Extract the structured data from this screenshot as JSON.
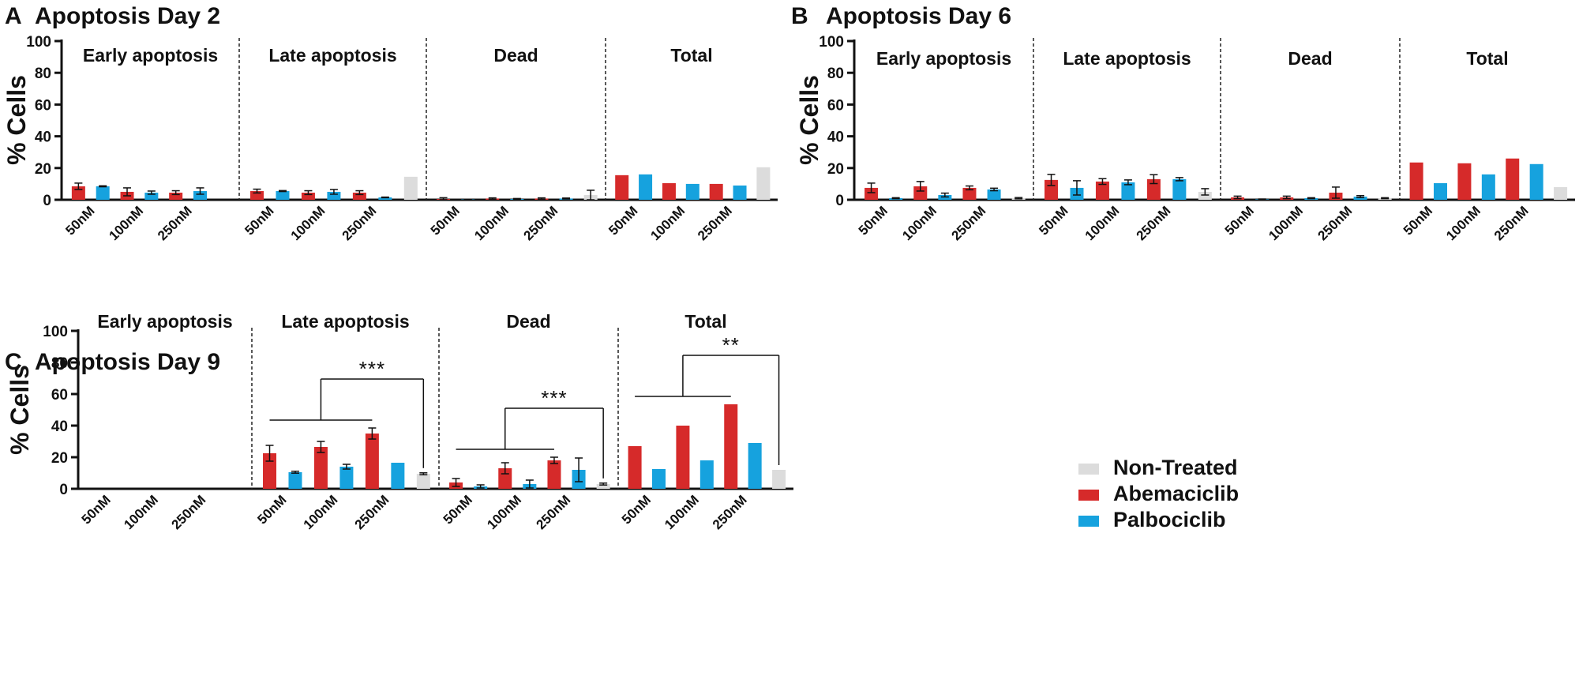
{
  "legend": [
    {
      "name": "Non-Treated",
      "color": "#dcdcdc"
    },
    {
      "name": "Abemaciclib",
      "color": "#d62a2a"
    },
    {
      "name": "Palbociclib",
      "color": "#16a2de"
    }
  ],
  "chart_data": [
    {
      "panel": "A",
      "title": "Apoptosis Day 2",
      "type": "bar",
      "ylabel": "% Cells",
      "ylim": [
        0,
        100
      ],
      "yticks": [
        "0",
        "20",
        "40",
        "60",
        "80",
        "100"
      ],
      "doses": [
        "50nM",
        "100nM",
        "250nM"
      ],
      "groups": [
        {
          "label": "Early apoptosis",
          "abemaciclib": [
            8.5,
            5.0,
            4.5
          ],
          "abemaciclib_err": [
            2,
            2.5,
            1.2
          ],
          "palbociclib": [
            8.5,
            4.5,
            5.5
          ],
          "palbociclib_err": [
            0.3,
            1.0,
            2.0
          ],
          "non_treated": 0,
          "non_treated_err": 0
        },
        {
          "label": "Late apoptosis",
          "abemaciclib": [
            5.5,
            4.5,
            4.5
          ],
          "abemaciclib_err": [
            1.2,
            1.2,
            1.2
          ],
          "palbociclib": [
            5.5,
            5.0,
            1.5
          ],
          "palbociclib_err": [
            0.3,
            1.5,
            0.2
          ],
          "non_treated": 14.5,
          "non_treated_err": 0
        },
        {
          "label": "Dead",
          "abemaciclib": [
            0.5,
            0.8,
            0.8
          ],
          "abemaciclib_err": [
            0.8,
            0.4,
            0.4
          ],
          "palbociclib": [
            0.2,
            0.5,
            0.8
          ],
          "palbociclib_err": [
            0.1,
            0.3,
            0.3
          ],
          "non_treated": 3.0,
          "non_treated_err": 3.0
        },
        {
          "label": "Total",
          "abemaciclib": [
            15.5,
            10.5,
            10.0
          ],
          "abemaciclib_err": [
            0,
            0,
            0
          ],
          "palbociclib": [
            16.0,
            10.0,
            9.0
          ],
          "palbociclib_err": [
            0,
            0,
            0
          ],
          "non_treated": 20.5,
          "non_treated_err": 0
        }
      ],
      "significance": []
    },
    {
      "panel": "B",
      "title": "Apoptosis Day 6",
      "type": "bar",
      "ylabel": "% Cells",
      "ylim": [
        0,
        100
      ],
      "yticks": [
        "0",
        "20",
        "40",
        "60",
        "80",
        "100"
      ],
      "doses": [
        "50nM",
        "100nM",
        "250nM"
      ],
      "groups": [
        {
          "label": "Early apoptosis",
          "abemaciclib": [
            7.5,
            8.5,
            7.5
          ],
          "abemaciclib_err": [
            3,
            3,
            1.2
          ],
          "palbociclib": [
            1.0,
            3.0,
            6.5
          ],
          "palbociclib_err": [
            0.3,
            1.2,
            0.8
          ],
          "non_treated": 1.0,
          "non_treated_err": 0.4
        },
        {
          "label": "Late apoptosis",
          "abemaciclib": [
            12.5,
            11.5,
            13.0
          ],
          "abemaciclib_err": [
            3.5,
            1.8,
            2.8
          ],
          "palbociclib": [
            7.5,
            11.0,
            13.0
          ],
          "palbociclib_err": [
            4.5,
            1.5,
            1.0
          ],
          "non_treated": 5.0,
          "non_treated_err": 2.0
        },
        {
          "label": "Dead",
          "abemaciclib": [
            1.5,
            1.5,
            4.5
          ],
          "abemaciclib_err": [
            0.8,
            0.8,
            3.5
          ],
          "palbociclib": [
            0.3,
            1.0,
            2.0
          ],
          "palbociclib_err": [
            0.2,
            0.3,
            0.6
          ],
          "non_treated": 1.0,
          "non_treated_err": 0.3
        },
        {
          "label": "Total",
          "abemaciclib": [
            23.5,
            23.0,
            26.0
          ],
          "abemaciclib_err": [
            0,
            0,
            0
          ],
          "palbociclib": [
            10.5,
            16.0,
            22.5
          ],
          "palbociclib_err": [
            0,
            0,
            0
          ],
          "non_treated": 8.0,
          "non_treated_err": 0
        }
      ],
      "significance": []
    },
    {
      "panel": "C",
      "title": "Apoptosis Day 9",
      "type": "bar",
      "ylabel": "% Cells",
      "ylim": [
        0,
        100
      ],
      "yticks": [
        "0",
        "20",
        "40",
        "60",
        "80",
        "100"
      ],
      "doses": [
        "50nM",
        "100nM",
        "250nM"
      ],
      "groups": [
        {
          "label": "Early apoptosis",
          "abemaciclib": [
            0,
            0,
            0
          ],
          "abemaciclib_err": [
            0,
            0,
            0
          ],
          "palbociclib": [
            0,
            0,
            0
          ],
          "palbociclib_err": [
            0,
            0,
            0
          ],
          "non_treated": 0,
          "non_treated_err": 0
        },
        {
          "label": "Late apoptosis",
          "abemaciclib": [
            22.5,
            26.5,
            35.0
          ],
          "abemaciclib_err": [
            5,
            3.5,
            3.5
          ],
          "palbociclib": [
            10.5,
            14.0,
            16.5
          ],
          "palbociclib_err": [
            0.6,
            1.5,
            0
          ],
          "non_treated": 9.5,
          "non_treated_err": 0.6
        },
        {
          "label": "Dead",
          "abemaciclib": [
            4.0,
            13.0,
            18.0
          ],
          "abemaciclib_err": [
            2.5,
            3.5,
            2.0
          ],
          "palbociclib": [
            1.5,
            3.0,
            12.0
          ],
          "palbociclib_err": [
            1.0,
            2.5,
            7.5
          ],
          "non_treated": 3.0,
          "non_treated_err": 0.6
        },
        {
          "label": "Total",
          "abemaciclib": [
            27.0,
            40.0,
            53.5
          ],
          "abemaciclib_err": [
            0,
            0,
            0
          ],
          "palbociclib": [
            12.5,
            18.0,
            29.0
          ],
          "palbociclib_err": [
            0,
            0,
            0
          ],
          "non_treated": 12.0,
          "non_treated_err": 0
        }
      ],
      "significance": [
        {
          "group": 1,
          "label": "***"
        },
        {
          "group": 2,
          "label": "***"
        },
        {
          "group": 3,
          "label": "**"
        }
      ]
    }
  ]
}
